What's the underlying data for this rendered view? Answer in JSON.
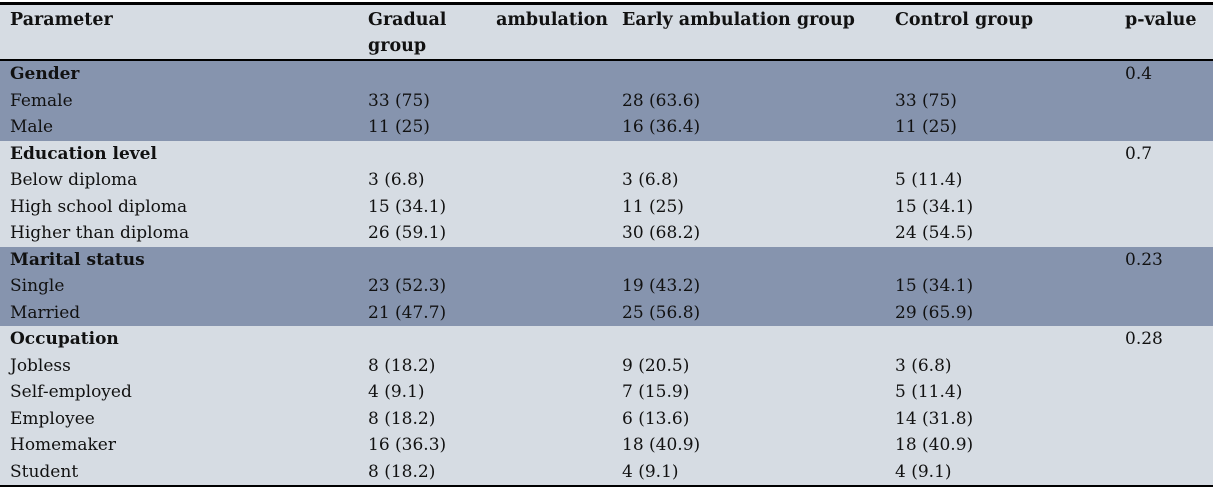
{
  "colors": {
    "band_dark": "#8694AE",
    "band_light": "#D6DCE3",
    "header_bg": "#D6DCE3",
    "border": "#000000",
    "text": "#111111",
    "page_bg": "#FFFFFF"
  },
  "table": {
    "columns": [
      "Parameter",
      "Gradual ambulation group",
      "Early ambulation group",
      "Control group",
      "p-value"
    ],
    "gradual_header_lines": {
      "line1_left": "Gradual",
      "line1_right": "ambulation",
      "line2": "group"
    },
    "sections": [
      {
        "name": "Gender",
        "p_value": "0.4",
        "shade": "dark",
        "rows": [
          {
            "parameter": "Female",
            "values": [
              "33 (75)",
              "28 (63.6)",
              "33 (75)"
            ]
          },
          {
            "parameter": "Male",
            "values": [
              "11 (25)",
              "16 (36.4)",
              "11 (25)"
            ]
          }
        ]
      },
      {
        "name": "Education level",
        "p_value": "0.7",
        "shade": "light",
        "rows": [
          {
            "parameter": "Below diploma",
            "values": [
              "3 (6.8)",
              "3 (6.8)",
              "5 (11.4)"
            ]
          },
          {
            "parameter": "High school diploma",
            "values": [
              "15 (34.1)",
              "11 (25)",
              "15 (34.1)"
            ]
          },
          {
            "parameter": "Higher than diploma",
            "values": [
              "26 (59.1)",
              "30 (68.2)",
              "24 (54.5)"
            ]
          }
        ]
      },
      {
        "name": "Marital status",
        "p_value": "0.23",
        "shade": "dark",
        "rows": [
          {
            "parameter": "Single",
            "values": [
              "23 (52.3)",
              "19 (43.2)",
              "15 (34.1)"
            ]
          },
          {
            "parameter": "Married",
            "values": [
              "21 (47.7)",
              "25 (56.8)",
              "29 (65.9)"
            ]
          }
        ]
      },
      {
        "name": "Occupation",
        "p_value": "0.28",
        "shade": "light",
        "rows": [
          {
            "parameter": "Jobless",
            "values": [
              "8 (18.2)",
              "9 (20.5)",
              "3 (6.8)"
            ]
          },
          {
            "parameter": "Self-employed",
            "values": [
              "4 (9.1)",
              "7 (15.9)",
              "5 (11.4)"
            ]
          },
          {
            "parameter": "Employee",
            "values": [
              "8 (18.2)",
              "6 (13.6)",
              "14 (31.8)"
            ]
          },
          {
            "parameter": "Homemaker",
            "values": [
              "16 (36.3)",
              "18 (40.9)",
              "18 (40.9)"
            ]
          },
          {
            "parameter": "Student",
            "values": [
              "8 (18.2)",
              "4 (9.1)",
              "4 (9.1)"
            ]
          }
        ]
      }
    ]
  }
}
